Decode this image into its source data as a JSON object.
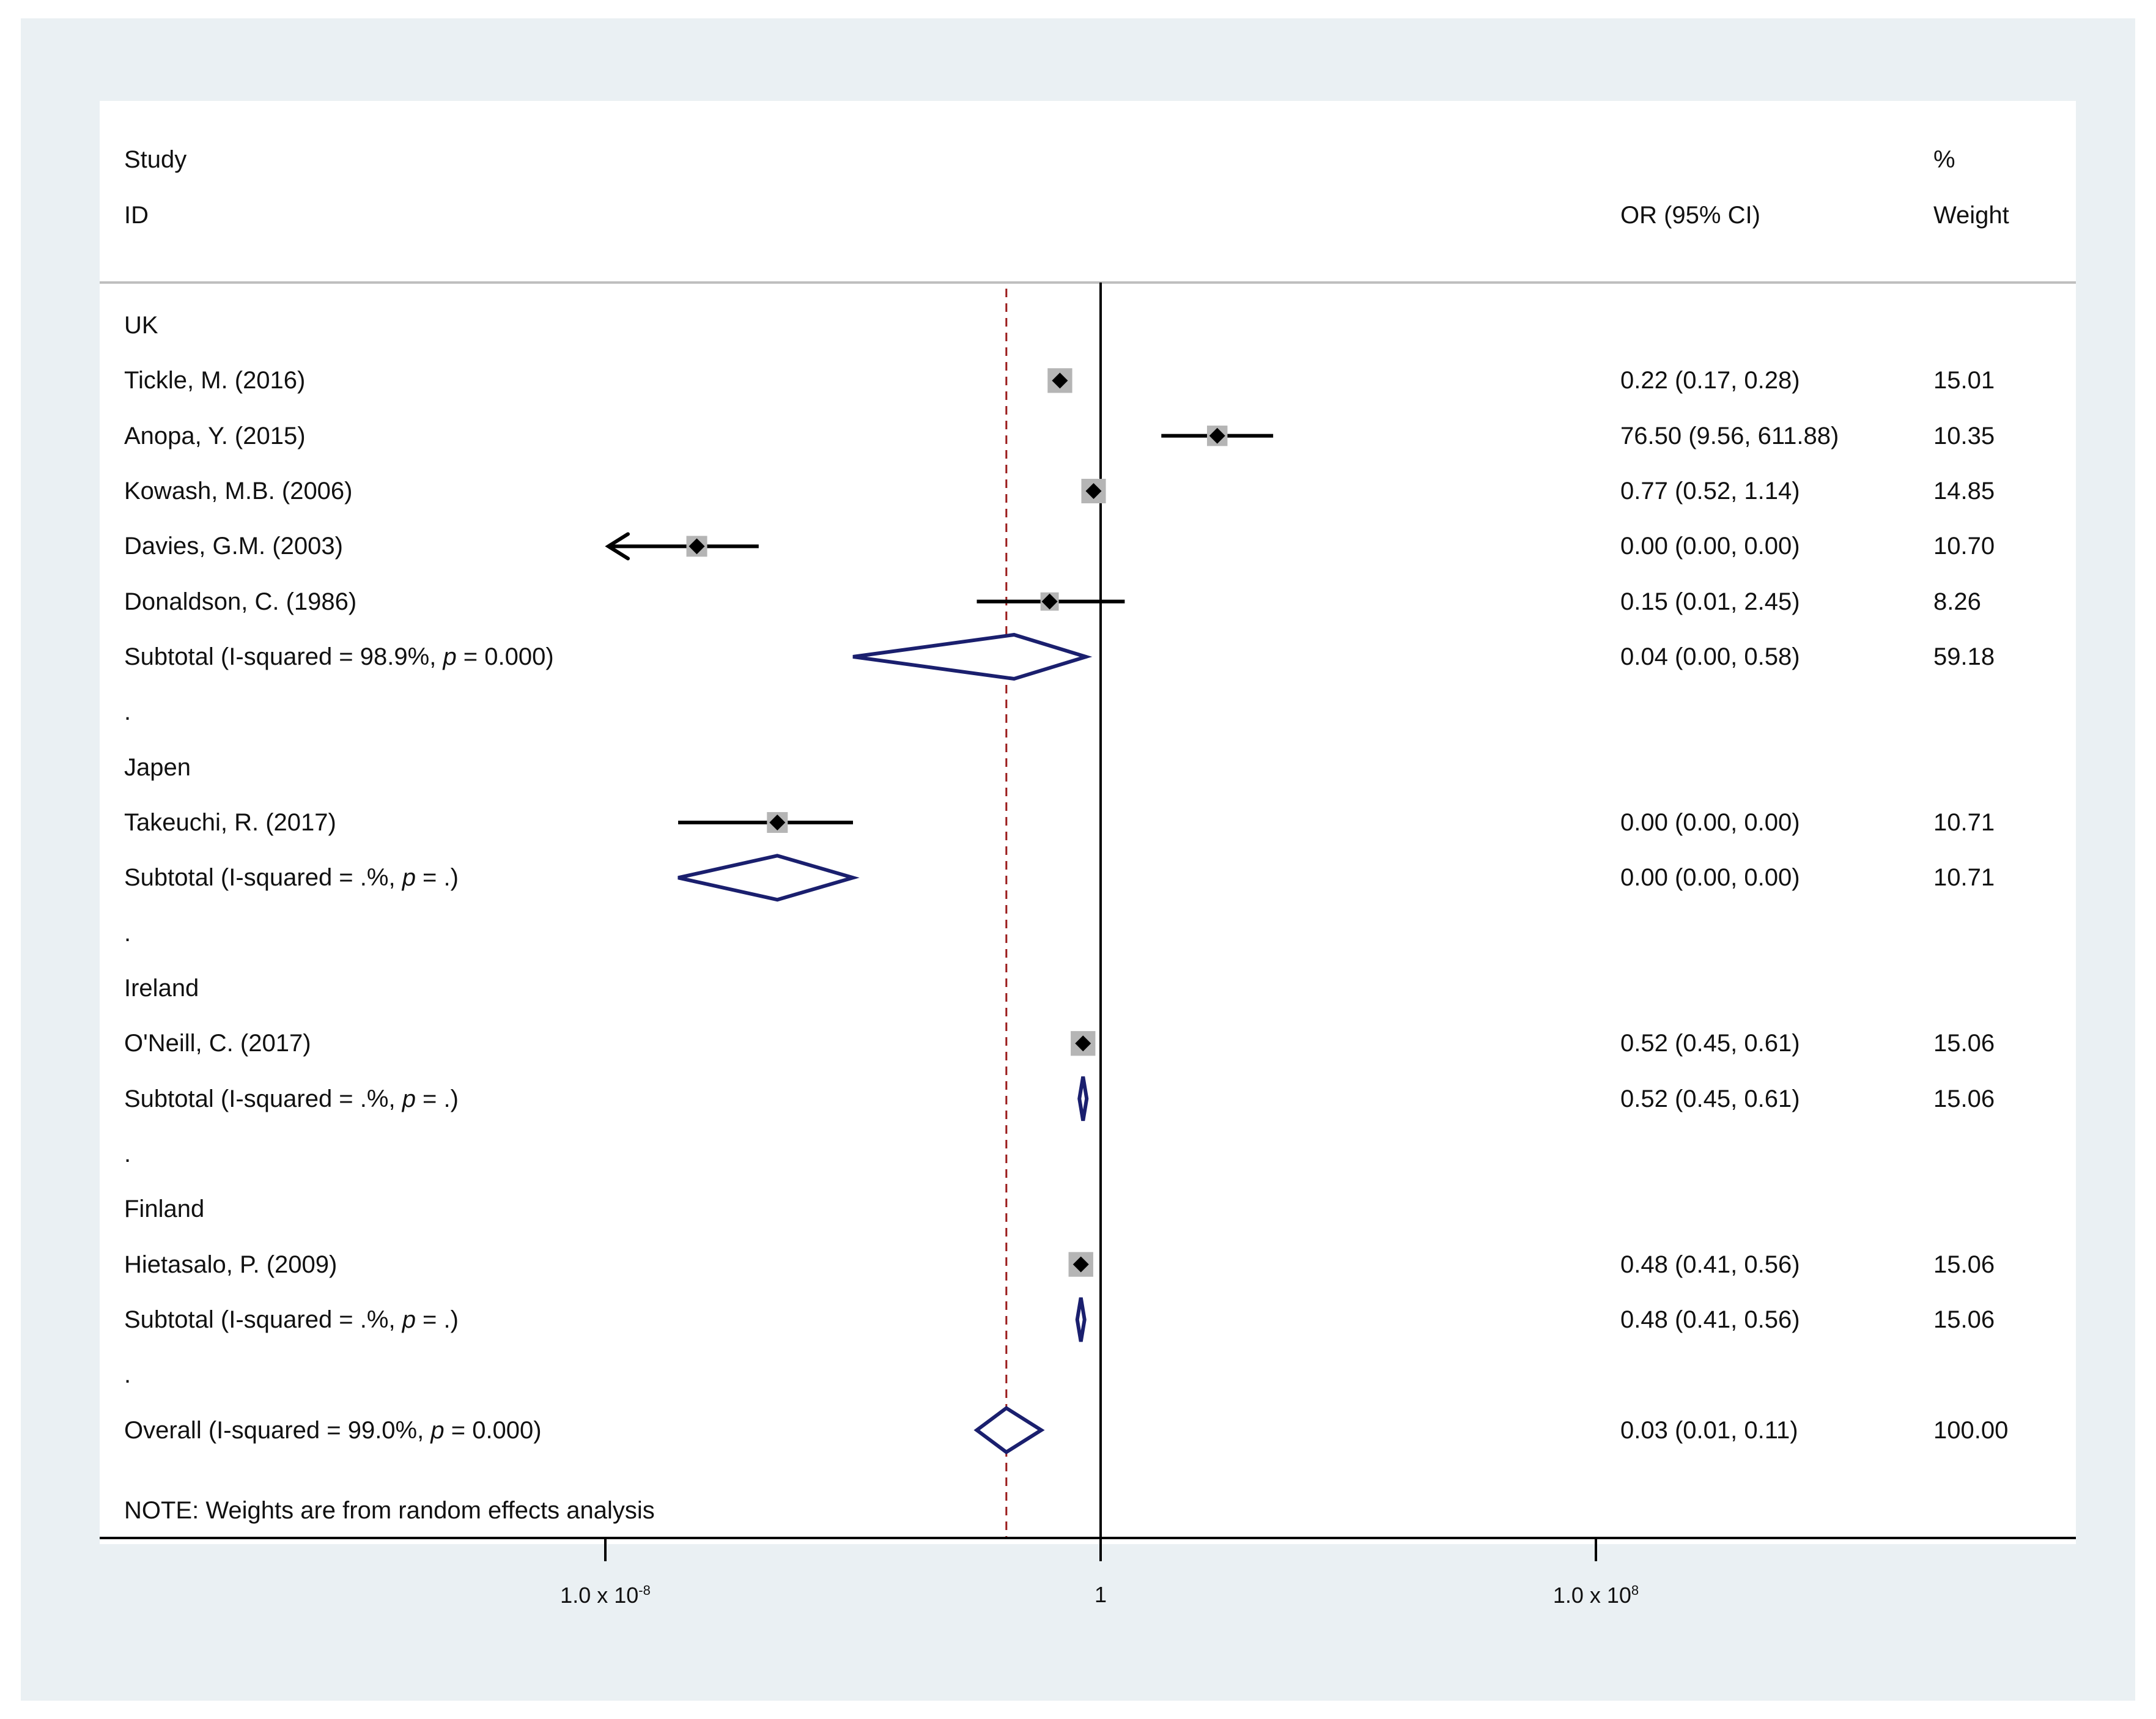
{
  "header": {
    "study_label": "Study",
    "id_label": "ID",
    "or_label": "OR (95% CI)",
    "pct_label": "%",
    "weight_label": "Weight"
  },
  "chart_data": {
    "type": "forest",
    "x_scale": "log",
    "null_line": 1,
    "overall_line": 0.03,
    "x_ticks": [
      {
        "value": 1e-08,
        "label_base": "1.0 x 10",
        "label_exp": "-8"
      },
      {
        "value": 1,
        "label_base": "1",
        "label_exp": ""
      },
      {
        "value": 100000000.0,
        "label_base": "1.0 x 10",
        "label_exp": "8"
      }
    ],
    "rows": [
      {
        "kind": "group",
        "label": "UK"
      },
      {
        "kind": "study",
        "label": "Tickle, M. (2016)",
        "or": 0.22,
        "lo": 0.17,
        "hi": 0.28,
        "or_text": "0.22 (0.17, 0.28)",
        "weight": "15.01"
      },
      {
        "kind": "study",
        "label": "Anopa, Y. (2015)",
        "or": 76.5,
        "lo": 9.56,
        "hi": 611.88,
        "or_text": "76.50 (9.56, 611.88)",
        "weight": "10.35"
      },
      {
        "kind": "study",
        "label": "Kowash, M.B. (2006)",
        "or": 0.77,
        "lo": 0.52,
        "hi": 1.14,
        "or_text": "0.77 (0.52, 1.14)",
        "weight": "14.85"
      },
      {
        "kind": "study",
        "label": "Davies, G.M. (2003)",
        "or": 3e-07,
        "lo": 1e-09,
        "hi": 3e-06,
        "clipped_left": true,
        "or_text": "0.00 (0.00, 0.00)",
        "weight": "10.70"
      },
      {
        "kind": "study",
        "label": "Donaldson, C. (1986)",
        "or": 0.15,
        "lo": 0.01,
        "hi": 2.45,
        "or_text": "0.15 (0.01, 2.45)",
        "weight": "8.26"
      },
      {
        "kind": "subtotal",
        "label": "Subtotal  (I-squared = 98.9%, ",
        "p_sym": "p",
        "p_text": " = 0.000)",
        "or": 0.04,
        "lo": 0.0001,
        "hi": 0.58,
        "or_text": "0.04 (0.00, 0.58)",
        "weight": "59.18"
      },
      {
        "kind": "dot",
        "label": "."
      },
      {
        "kind": "group",
        "label": "Japen"
      },
      {
        "kind": "study",
        "label": "Takeuchi, R. (2017)",
        "or": 6e-06,
        "lo": 1.5e-07,
        "hi": 0.0001,
        "or_text": "0.00 (0.00, 0.00)",
        "weight": "10.71"
      },
      {
        "kind": "subtotal",
        "label": "Subtotal  (I-squared = .%, ",
        "p_sym": "p",
        "p_text": " = .)",
        "or": 6e-06,
        "lo": 1.5e-07,
        "hi": 0.0001,
        "or_text": "0.00 (0.00, 0.00)",
        "weight": "10.71"
      },
      {
        "kind": "dot",
        "label": "."
      },
      {
        "kind": "group",
        "label": "Ireland"
      },
      {
        "kind": "study",
        "label": "O'Neill, C. (2017)",
        "or": 0.52,
        "lo": 0.45,
        "hi": 0.61,
        "or_text": "0.52 (0.45, 0.61)",
        "weight": "15.06"
      },
      {
        "kind": "subtotal",
        "label": "Subtotal  (I-squared = .%, ",
        "p_sym": "p",
        "p_text": " = .)",
        "or": 0.52,
        "lo": 0.45,
        "hi": 0.61,
        "or_text": "0.52 (0.45, 0.61)",
        "weight": "15.06"
      },
      {
        "kind": "dot",
        "label": "."
      },
      {
        "kind": "group",
        "label": "Finland"
      },
      {
        "kind": "study",
        "label": "Hietasalo, P. (2009)",
        "or": 0.48,
        "lo": 0.41,
        "hi": 0.56,
        "or_text": "0.48 (0.41, 0.56)",
        "weight": "15.06"
      },
      {
        "kind": "subtotal",
        "label": "Subtotal  (I-squared = .%, ",
        "p_sym": "p",
        "p_text": " = .)",
        "or": 0.48,
        "lo": 0.41,
        "hi": 0.56,
        "or_text": "0.48 (0.41, 0.56)",
        "weight": "15.06"
      },
      {
        "kind": "dot",
        "label": "."
      },
      {
        "kind": "overall",
        "label": "Overall  (I-squared = 99.0%, ",
        "p_sym": "p",
        "p_text": " = 0.000)",
        "or": 0.03,
        "lo": 0.01,
        "hi": 0.11,
        "or_text": "0.03 (0.01, 0.11)",
        "weight": "100.00"
      }
    ],
    "note": "NOTE: Weights are from random effects analysis"
  },
  "colors": {
    "background_outer": "#eaf0f3",
    "diamond_stroke": "#1a1f6e",
    "overall_line": "#9b1c1c",
    "box_fill": "#b5b5b5"
  }
}
